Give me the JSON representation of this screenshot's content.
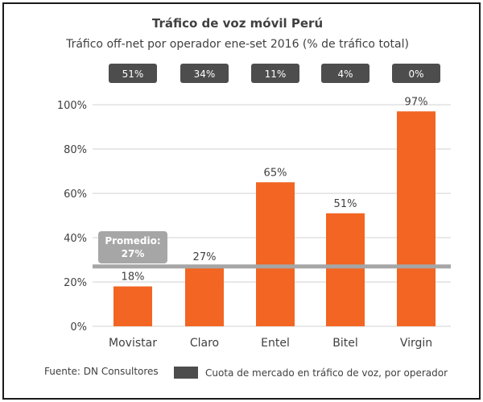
{
  "chart_data": {
    "type": "bar",
    "title": "Tráfico de voz móvil Perú",
    "subtitle": "Tráfico off-net por operador ene-set 2016 (% de tráfico total)",
    "categories": [
      "Movistar",
      "Claro",
      "Entel",
      "Bitel",
      "Virgin"
    ],
    "values": [
      18,
      27,
      65,
      51,
      97
    ],
    "value_labels": [
      "18%",
      "27%",
      "65%",
      "51%",
      "97%"
    ],
    "market_share_labels": [
      "51%",
      "34%",
      "11%",
      "4%",
      "0%"
    ],
    "ylim": [
      0,
      100
    ],
    "yticks": [
      0,
      20,
      40,
      60,
      80,
      100
    ],
    "ytick_labels": [
      "0%",
      "20%",
      "40%",
      "60%",
      "80%",
      "100%"
    ],
    "xlabel": "",
    "ylabel": "",
    "grid": true,
    "average": {
      "value": 27,
      "label_line1": "Promedio:",
      "label_line2": "27%"
    },
    "legend": {
      "label": "Cuota de mercado en tráfico de voz, por operador",
      "placement": "bottom-right"
    },
    "source": "Fuente: DN Consultores",
    "colors": {
      "bar": "#f26522",
      "badge": "#4d4d4d",
      "badge_text": "#ffffff",
      "average_line": "#a6a6a6",
      "average_box": "#a6a6a6",
      "grid": "#d0d0d0",
      "text": "#404040"
    }
  }
}
